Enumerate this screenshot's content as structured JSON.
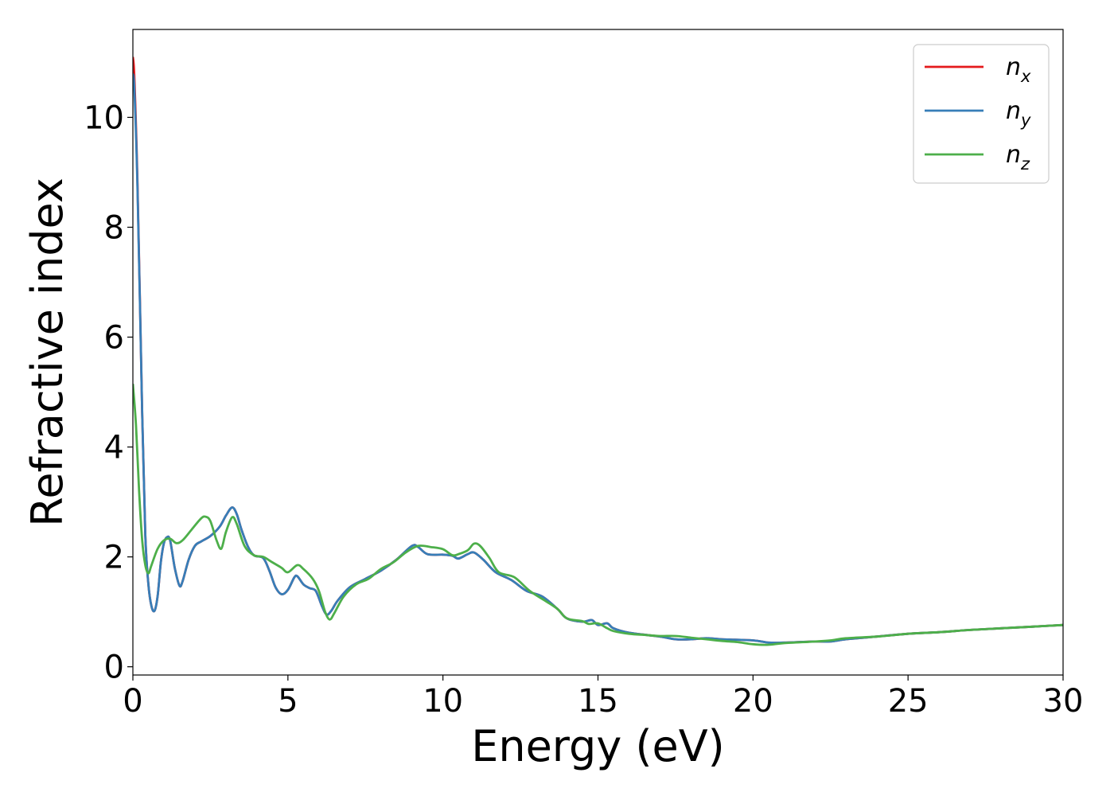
{
  "chart_data": {
    "type": "line",
    "xlabel": "Energy (eV)",
    "ylabel": "Refractive index",
    "xlim": [
      0,
      30
    ],
    "ylim": [
      -0.15,
      11.6
    ],
    "xticks": [
      0,
      5,
      10,
      15,
      20,
      25,
      30
    ],
    "yticks": [
      0,
      2,
      4,
      6,
      8,
      10
    ],
    "xtick_labels": [
      "0",
      "5",
      "10",
      "15",
      "20",
      "25",
      "30"
    ],
    "ytick_labels": [
      "0",
      "2",
      "4",
      "6",
      "8",
      "10"
    ],
    "grid": false,
    "legend_position": "top-right",
    "series": [
      {
        "name": "n_x",
        "legend_base": "n",
        "legend_sub": "x",
        "color": "#e41a1c",
        "points": [
          [
            0,
            11.1
          ],
          [
            0.05,
            10.7
          ],
          [
            0.15,
            8.8
          ],
          [
            0.3,
            4.6
          ],
          [
            0.4,
            2.4
          ],
          [
            0.5,
            1.5
          ],
          [
            0.6,
            1.1
          ],
          [
            0.7,
            1.02
          ],
          [
            0.8,
            1.3
          ],
          [
            0.9,
            1.9
          ],
          [
            1.0,
            2.25
          ],
          [
            1.1,
            2.36
          ],
          [
            1.2,
            2.3
          ],
          [
            1.35,
            1.8
          ],
          [
            1.5,
            1.48
          ],
          [
            1.6,
            1.55
          ],
          [
            1.8,
            1.95
          ],
          [
            2.0,
            2.2
          ],
          [
            2.2,
            2.28
          ],
          [
            2.5,
            2.38
          ],
          [
            2.8,
            2.55
          ],
          [
            3.0,
            2.75
          ],
          [
            3.2,
            2.9
          ],
          [
            3.35,
            2.78
          ],
          [
            3.5,
            2.5
          ],
          [
            3.7,
            2.2
          ],
          [
            3.9,
            2.03
          ],
          [
            4.2,
            1.98
          ],
          [
            4.4,
            1.75
          ],
          [
            4.6,
            1.45
          ],
          [
            4.8,
            1.32
          ],
          [
            5.0,
            1.4
          ],
          [
            5.2,
            1.62
          ],
          [
            5.3,
            1.65
          ],
          [
            5.5,
            1.5
          ],
          [
            5.7,
            1.43
          ],
          [
            5.9,
            1.38
          ],
          [
            6.1,
            1.1
          ],
          [
            6.25,
            0.95
          ],
          [
            6.4,
            1.02
          ],
          [
            6.6,
            1.2
          ],
          [
            7.0,
            1.45
          ],
          [
            7.5,
            1.6
          ],
          [
            8.0,
            1.75
          ],
          [
            8.5,
            1.95
          ],
          [
            9.0,
            2.2
          ],
          [
            9.2,
            2.18
          ],
          [
            9.5,
            2.05
          ],
          [
            10.0,
            2.04
          ],
          [
            10.3,
            2.02
          ],
          [
            10.5,
            1.97
          ],
          [
            10.8,
            2.05
          ],
          [
            11.0,
            2.08
          ],
          [
            11.3,
            1.95
          ],
          [
            11.7,
            1.72
          ],
          [
            12.2,
            1.58
          ],
          [
            12.7,
            1.38
          ],
          [
            13.2,
            1.28
          ],
          [
            13.7,
            1.05
          ],
          [
            14.0,
            0.88
          ],
          [
            14.5,
            0.82
          ],
          [
            14.8,
            0.85
          ],
          [
            15.0,
            0.76
          ],
          [
            15.3,
            0.79
          ],
          [
            15.5,
            0.7
          ],
          [
            16.0,
            0.62
          ],
          [
            17.0,
            0.55
          ],
          [
            17.5,
            0.5
          ],
          [
            18.0,
            0.5
          ],
          [
            18.5,
            0.52
          ],
          [
            19.0,
            0.5
          ],
          [
            20.0,
            0.48
          ],
          [
            20.5,
            0.44
          ],
          [
            21.0,
            0.44
          ],
          [
            22.0,
            0.46
          ],
          [
            22.5,
            0.46
          ],
          [
            23.0,
            0.5
          ],
          [
            24.0,
            0.55
          ],
          [
            25.0,
            0.6
          ],
          [
            26.0,
            0.63
          ],
          [
            27.0,
            0.67
          ],
          [
            28.0,
            0.7
          ],
          [
            29.0,
            0.73
          ],
          [
            30.0,
            0.76
          ]
        ]
      },
      {
        "name": "n_y",
        "legend_base": "n",
        "legend_sub": "y",
        "color": "#377eb8",
        "points": [
          [
            0,
            10.8
          ],
          [
            0.05,
            10.5
          ],
          [
            0.15,
            8.7
          ],
          [
            0.3,
            4.6
          ],
          [
            0.4,
            2.4
          ],
          [
            0.5,
            1.5
          ],
          [
            0.6,
            1.1
          ],
          [
            0.7,
            1.02
          ],
          [
            0.8,
            1.3
          ],
          [
            0.9,
            1.9
          ],
          [
            1.0,
            2.25
          ],
          [
            1.1,
            2.36
          ],
          [
            1.2,
            2.3
          ],
          [
            1.35,
            1.8
          ],
          [
            1.5,
            1.48
          ],
          [
            1.6,
            1.55
          ],
          [
            1.8,
            1.95
          ],
          [
            2.0,
            2.2
          ],
          [
            2.2,
            2.28
          ],
          [
            2.5,
            2.38
          ],
          [
            2.8,
            2.55
          ],
          [
            3.0,
            2.75
          ],
          [
            3.2,
            2.9
          ],
          [
            3.35,
            2.78
          ],
          [
            3.5,
            2.5
          ],
          [
            3.7,
            2.2
          ],
          [
            3.9,
            2.03
          ],
          [
            4.2,
            1.98
          ],
          [
            4.4,
            1.75
          ],
          [
            4.6,
            1.45
          ],
          [
            4.8,
            1.32
          ],
          [
            5.0,
            1.4
          ],
          [
            5.2,
            1.62
          ],
          [
            5.3,
            1.65
          ],
          [
            5.5,
            1.5
          ],
          [
            5.7,
            1.43
          ],
          [
            5.9,
            1.38
          ],
          [
            6.1,
            1.1
          ],
          [
            6.25,
            0.95
          ],
          [
            6.4,
            1.02
          ],
          [
            6.6,
            1.2
          ],
          [
            7.0,
            1.45
          ],
          [
            7.5,
            1.6
          ],
          [
            8.0,
            1.75
          ],
          [
            8.5,
            1.95
          ],
          [
            9.0,
            2.2
          ],
          [
            9.2,
            2.18
          ],
          [
            9.5,
            2.05
          ],
          [
            10.0,
            2.04
          ],
          [
            10.3,
            2.02
          ],
          [
            10.5,
            1.97
          ],
          [
            10.8,
            2.05
          ],
          [
            11.0,
            2.08
          ],
          [
            11.3,
            1.95
          ],
          [
            11.7,
            1.72
          ],
          [
            12.2,
            1.58
          ],
          [
            12.7,
            1.38
          ],
          [
            13.2,
            1.28
          ],
          [
            13.7,
            1.05
          ],
          [
            14.0,
            0.88
          ],
          [
            14.5,
            0.82
          ],
          [
            14.8,
            0.85
          ],
          [
            15.0,
            0.76
          ],
          [
            15.3,
            0.79
          ],
          [
            15.5,
            0.7
          ],
          [
            16.0,
            0.62
          ],
          [
            17.0,
            0.55
          ],
          [
            17.5,
            0.5
          ],
          [
            18.0,
            0.5
          ],
          [
            18.5,
            0.52
          ],
          [
            19.0,
            0.5
          ],
          [
            20.0,
            0.48
          ],
          [
            20.5,
            0.44
          ],
          [
            21.0,
            0.44
          ],
          [
            22.0,
            0.46
          ],
          [
            22.5,
            0.46
          ],
          [
            23.0,
            0.5
          ],
          [
            24.0,
            0.55
          ],
          [
            25.0,
            0.6
          ],
          [
            26.0,
            0.63
          ],
          [
            27.0,
            0.67
          ],
          [
            28.0,
            0.7
          ],
          [
            29.0,
            0.73
          ],
          [
            30.0,
            0.76
          ]
        ]
      },
      {
        "name": "n_z",
        "legend_base": "n",
        "legend_sub": "z",
        "color": "#4daf4a",
        "points": [
          [
            0,
            5.15
          ],
          [
            0.1,
            4.4
          ],
          [
            0.2,
            3.2
          ],
          [
            0.3,
            2.3
          ],
          [
            0.4,
            1.85
          ],
          [
            0.5,
            1.7
          ],
          [
            0.6,
            1.85
          ],
          [
            0.8,
            2.15
          ],
          [
            1.0,
            2.3
          ],
          [
            1.2,
            2.33
          ],
          [
            1.4,
            2.25
          ],
          [
            1.6,
            2.3
          ],
          [
            1.9,
            2.5
          ],
          [
            2.2,
            2.7
          ],
          [
            2.35,
            2.73
          ],
          [
            2.5,
            2.65
          ],
          [
            2.7,
            2.3
          ],
          [
            2.85,
            2.15
          ],
          [
            3.0,
            2.45
          ],
          [
            3.2,
            2.72
          ],
          [
            3.35,
            2.6
          ],
          [
            3.6,
            2.2
          ],
          [
            3.9,
            2.03
          ],
          [
            4.2,
            2.0
          ],
          [
            4.5,
            1.9
          ],
          [
            4.8,
            1.8
          ],
          [
            5.0,
            1.72
          ],
          [
            5.3,
            1.85
          ],
          [
            5.5,
            1.78
          ],
          [
            5.8,
            1.6
          ],
          [
            6.0,
            1.38
          ],
          [
            6.2,
            1.0
          ],
          [
            6.35,
            0.86
          ],
          [
            6.5,
            0.98
          ],
          [
            6.8,
            1.28
          ],
          [
            7.2,
            1.5
          ],
          [
            7.6,
            1.6
          ],
          [
            8.0,
            1.78
          ],
          [
            8.4,
            1.9
          ],
          [
            8.8,
            2.08
          ],
          [
            9.2,
            2.2
          ],
          [
            9.6,
            2.18
          ],
          [
            10.0,
            2.14
          ],
          [
            10.3,
            2.03
          ],
          [
            10.5,
            2.05
          ],
          [
            10.8,
            2.12
          ],
          [
            11.0,
            2.24
          ],
          [
            11.2,
            2.2
          ],
          [
            11.5,
            1.98
          ],
          [
            11.8,
            1.72
          ],
          [
            12.3,
            1.63
          ],
          [
            12.8,
            1.38
          ],
          [
            13.3,
            1.2
          ],
          [
            13.7,
            1.05
          ],
          [
            14.0,
            0.88
          ],
          [
            14.5,
            0.83
          ],
          [
            14.7,
            0.78
          ],
          [
            15.0,
            0.79
          ],
          [
            15.3,
            0.7
          ],
          [
            15.5,
            0.65
          ],
          [
            16.0,
            0.6
          ],
          [
            16.5,
            0.58
          ],
          [
            17.0,
            0.56
          ],
          [
            17.5,
            0.56
          ],
          [
            18.0,
            0.53
          ],
          [
            18.5,
            0.5
          ],
          [
            19.0,
            0.47
          ],
          [
            19.5,
            0.45
          ],
          [
            20.0,
            0.41
          ],
          [
            20.5,
            0.4
          ],
          [
            21.0,
            0.43
          ],
          [
            22.0,
            0.46
          ],
          [
            22.5,
            0.48
          ],
          [
            23.0,
            0.52
          ],
          [
            24.0,
            0.55
          ],
          [
            25.0,
            0.6
          ],
          [
            26.0,
            0.63
          ],
          [
            27.0,
            0.67
          ],
          [
            28.0,
            0.7
          ],
          [
            29.0,
            0.73
          ],
          [
            30.0,
            0.76
          ]
        ]
      }
    ]
  }
}
